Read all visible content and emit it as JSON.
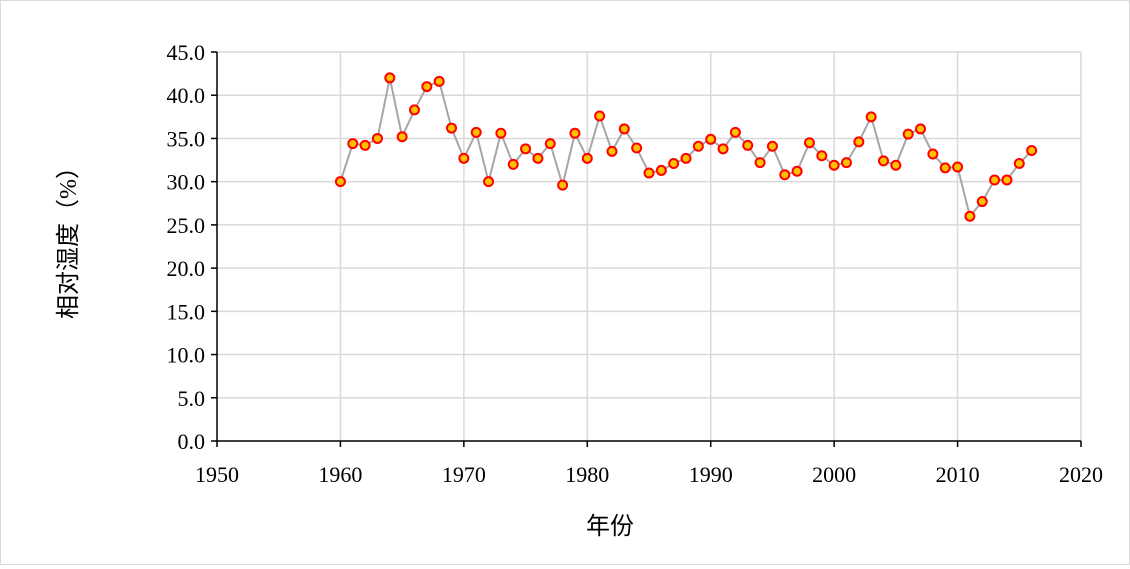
{
  "chart_data": {
    "type": "line",
    "xlabel": "年份",
    "ylabel": "相对湿度（%）",
    "xlim": [
      1950,
      2020
    ],
    "ylim": [
      0,
      45
    ],
    "x_ticks": [
      "1950",
      "1960",
      "1970",
      "1980",
      "1990",
      "2000",
      "2010",
      "2020"
    ],
    "y_ticks": [
      "0.0",
      "5.0",
      "10.0",
      "15.0",
      "20.0",
      "25.0",
      "30.0",
      "35.0",
      "40.0",
      "45.0"
    ],
    "grid": true,
    "marker": "circle",
    "colors": {
      "line": "#a6a6a6",
      "marker_fill": "#ffc000",
      "marker_edge": "#ff0000",
      "grid": "#d9d9d9",
      "axis": "#000000"
    },
    "series": [
      {
        "x": [
          1960,
          1961,
          1962,
          1963,
          1964,
          1965,
          1966,
          1967,
          1968,
          1969,
          1970,
          1971,
          1972,
          1973,
          1974,
          1975,
          1976,
          1977,
          1978,
          1979,
          1980,
          1981,
          1982,
          1983,
          1984,
          1985,
          1986,
          1987,
          1988,
          1989,
          1990,
          1991,
          1992,
          1993,
          1994,
          1995,
          1996,
          1997,
          1998,
          1999,
          2000,
          2001,
          2002,
          2003,
          2004,
          2005,
          2006,
          2007,
          2008,
          2009,
          2010,
          2011,
          2012,
          2013,
          2014,
          2015,
          2016
        ],
        "values": [
          30.0,
          34.4,
          34.2,
          35.0,
          42.0,
          35.2,
          38.3,
          41.0,
          41.6,
          36.2,
          32.7,
          35.7,
          30.0,
          35.6,
          32.0,
          33.8,
          32.7,
          34.4,
          29.6,
          35.6,
          32.7,
          37.6,
          33.5,
          36.1,
          33.9,
          31.0,
          31.3,
          32.1,
          32.7,
          34.1,
          34.9,
          33.8,
          35.7,
          34.2,
          32.2,
          34.1,
          30.8,
          31.2,
          34.5,
          33.0,
          31.9,
          32.2,
          34.6,
          37.5,
          32.4,
          31.9,
          35.5,
          36.1,
          33.2,
          31.6,
          31.7,
          26.0,
          27.7,
          30.2,
          30.2,
          32.1,
          33.6
        ]
      }
    ]
  }
}
